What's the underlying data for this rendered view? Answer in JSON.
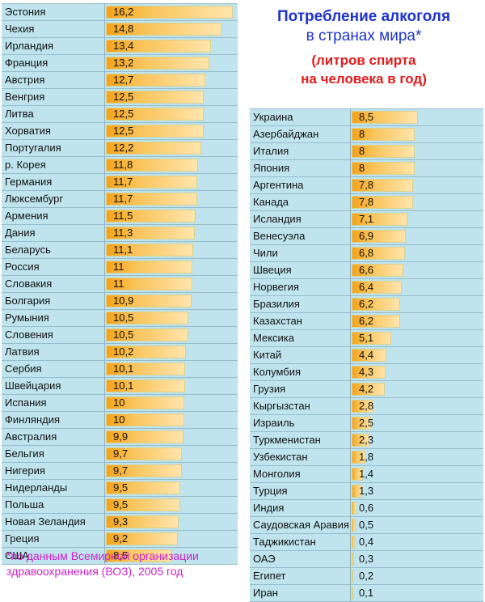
{
  "title": {
    "line1": "Потребление алкоголя",
    "line2": "в странах мира*",
    "subtitle1": "(литров спирта",
    "subtitle2": "на человека в год)"
  },
  "footnote": {
    "line1": "*по данным Всемирной организации",
    "line2": "здравоохранения (ВОЗ), 2005 год"
  },
  "colors": {
    "bar": "#f6a21a",
    "background": "#bfe4ee",
    "title": "#1f33c9",
    "subtitle": "#e01b1b",
    "footnote": "#cc22c7"
  },
  "chart_data": [
    {
      "type": "bar",
      "orientation": "horizontal",
      "categories": [
        "Эстония",
        "Чехия",
        "Ирландия",
        "Франция",
        "Австрия",
        "Венгрия",
        "Литва",
        "Хорватия",
        "Португалия",
        "р. Корея",
        "Германия",
        "Люксембург",
        "Армения",
        "Дания",
        "Беларусь",
        "Россия",
        "Словакия",
        "Болгария",
        "Румыния",
        "Словения",
        "Латвия",
        "Сербия",
        "Швейцария",
        "Испания",
        "Финляндия",
        "Австралия",
        "Бельгия",
        "Нигерия",
        "Нидерланды",
        "Польша",
        "Новая Зеландия",
        "Греция",
        "США"
      ],
      "values": [
        16.2,
        14.8,
        13.4,
        13.2,
        12.7,
        12.5,
        12.5,
        12.5,
        12.2,
        11.8,
        11.7,
        11.7,
        11.5,
        11.3,
        11.1,
        11,
        11,
        10.9,
        10.5,
        10.5,
        10.2,
        10.1,
        10.1,
        10,
        10,
        9.9,
        9.7,
        9.7,
        9.5,
        9.5,
        9.3,
        9.2,
        8.5
      ],
      "labels": [
        "16,2",
        "14,8",
        "13,4",
        "13,2",
        "12,7",
        "12,5",
        "12,5",
        "12,5",
        "12,2",
        "11,8",
        "11,7",
        "11,7",
        "11,5",
        "11,3",
        "11,1",
        "11",
        "11",
        "10,9",
        "10,5",
        "10,5",
        "10,2",
        "10,1",
        "10,1",
        "10",
        "10",
        "9,9",
        "9,7",
        "9,7",
        "9,5",
        "9,5",
        "9,3",
        "9,2",
        "8,5"
      ],
      "xlim": [
        0,
        16.2
      ]
    },
    {
      "type": "bar",
      "orientation": "horizontal",
      "categories": [
        "Украина",
        "Азербайджан",
        "Италия",
        "Япония",
        "Аргентина",
        "Канада",
        "Исландия",
        "Венесуэла",
        "Чили",
        "Швеция",
        "Норвегия",
        "Бразилия",
        "Казахстан",
        "Мексика",
        "Китай",
        "Колумбия",
        "Грузия",
        "Кыргызстан",
        "Израиль",
        "Туркменистан",
        "Узбекистан",
        "Монголия",
        "Турция",
        "Индия",
        "Саудовская Аравия",
        "Таджикистан",
        "ОАЭ",
        "Египет",
        "Иран"
      ],
      "values": [
        8.5,
        8,
        8,
        8,
        7.8,
        7.8,
        7.1,
        6.9,
        6.8,
        6.6,
        6.4,
        6.2,
        6.2,
        5.1,
        4.4,
        4.3,
        4.2,
        2.8,
        2.5,
        2.3,
        1.8,
        1.4,
        1.3,
        0.6,
        0.5,
        0.4,
        0.3,
        0.2,
        0.1
      ],
      "labels": [
        "8,5",
        "8",
        "8",
        "8",
        "7,8",
        "7,8",
        "7,1",
        "6,9",
        "6,8",
        "6,6",
        "6,4",
        "6,2",
        "6,2",
        "5,1",
        "4,4",
        "4,3",
        "4,2",
        "2,8",
        "2,5",
        "2,3",
        "1,8",
        "1,4",
        "1,3",
        "0,6",
        "0,5",
        "0,4",
        "0,3",
        "0,2",
        "0,1"
      ],
      "xlim": [
        0,
        16.2
      ]
    }
  ]
}
